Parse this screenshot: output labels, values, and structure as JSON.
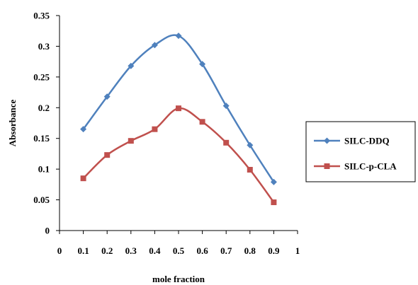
{
  "chart_data": {
    "type": "line",
    "xlabel": "mole fraction",
    "ylabel": "Absorbance",
    "xlim": [
      0,
      1
    ],
    "ylim": [
      0,
      0.35
    ],
    "x_ticks": [
      "0",
      "0.1",
      "0.2",
      "0.3",
      "0.4",
      "0.5",
      "0.6",
      "0.7",
      "0.8",
      "0.9",
      "1"
    ],
    "y_ticks": [
      "0",
      "0.05",
      "0.1",
      "0.15",
      "0.2",
      "0.25",
      "0.3",
      "0.35"
    ],
    "x": [
      0.1,
      0.2,
      0.3,
      0.4,
      0.5,
      0.6,
      0.7,
      0.8,
      0.9
    ],
    "grid": false,
    "legend_position": "right",
    "series": [
      {
        "name": "SILC-DDQ",
        "color": "#4F81BD",
        "marker": "diamond",
        "values": [
          0.165,
          0.218,
          0.268,
          0.302,
          0.317,
          0.271,
          0.203,
          0.139,
          0.079
        ]
      },
      {
        "name": "SILC-p-CLA",
        "color": "#C0504D",
        "marker": "square",
        "values": [
          0.085,
          0.123,
          0.146,
          0.165,
          0.199,
          0.177,
          0.143,
          0.099,
          0.046
        ]
      }
    ]
  }
}
